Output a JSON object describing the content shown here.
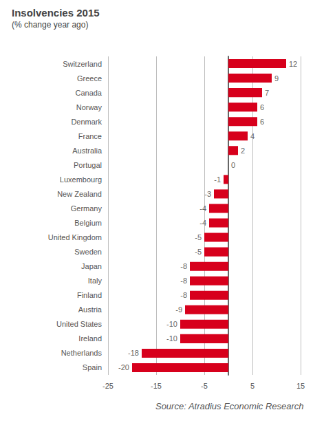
{
  "chart_data": {
    "type": "bar",
    "orientation": "horizontal",
    "title": "Insolvencies 2015",
    "subtitle": "(% change year ago)",
    "source": "Source: Atradius Economic Research",
    "categories": [
      "Switzerland",
      "Greece",
      "Canada",
      "Norway",
      "Denmark",
      "France",
      "Australia",
      "Portugal",
      "Luxembourg",
      "New Zealand",
      "Germany",
      "Belgium",
      "United Kingdom",
      "Sweden",
      "Japan",
      "Italy",
      "Finland",
      "Austria",
      "United States",
      "Ireland",
      "Netherlands",
      "Spain"
    ],
    "values": [
      12,
      9,
      7,
      6,
      6,
      4,
      2,
      0,
      -1,
      -3,
      -4,
      -4,
      -5,
      -5,
      -8,
      -8,
      -8,
      -9,
      -10,
      -10,
      -18,
      -20
    ],
    "color": "#d7001c",
    "xlim": [
      -25,
      15
    ],
    "xticks": [
      -25,
      -15,
      -5,
      5,
      15
    ],
    "grid": true,
    "data_labels": true
  }
}
